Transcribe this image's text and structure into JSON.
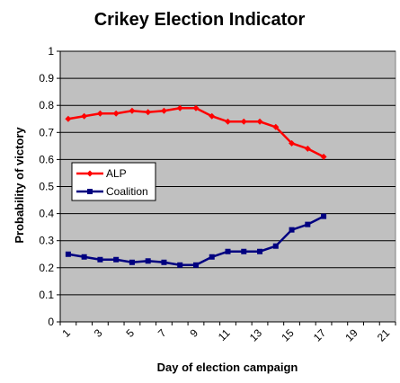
{
  "chart_data": {
    "type": "line",
    "title": "Crikey Election Indicator",
    "xlabel": "Day of election campaign",
    "ylabel": "Probability of victory",
    "xlim": [
      1,
      22
    ],
    "ylim": [
      0,
      1
    ],
    "x_ticks": [
      "1",
      "3",
      "5",
      "7",
      "9",
      "11",
      "13",
      "15",
      "17",
      "19",
      "21"
    ],
    "y_ticks": [
      "0",
      "0.1",
      "0.2",
      "0.3",
      "0.4",
      "0.5",
      "0.6",
      "0.7",
      "0.8",
      "0.9",
      "1"
    ],
    "grid": "horizontal",
    "legend_position": "middle-left",
    "x": [
      1,
      2,
      3,
      4,
      5,
      6,
      7,
      8,
      9,
      10,
      11,
      12,
      13,
      14,
      15,
      16,
      17
    ],
    "series": [
      {
        "name": "ALP",
        "color": "#ff0000",
        "marker": "diamond",
        "values": [
          0.75,
          0.76,
          0.77,
          0.77,
          0.78,
          0.775,
          0.78,
          0.79,
          0.79,
          0.76,
          0.74,
          0.74,
          0.74,
          0.72,
          0.66,
          0.64,
          0.61
        ]
      },
      {
        "name": "Coalition",
        "color": "#000080",
        "marker": "square",
        "values": [
          0.25,
          0.24,
          0.23,
          0.23,
          0.22,
          0.225,
          0.22,
          0.21,
          0.21,
          0.24,
          0.26,
          0.26,
          0.26,
          0.28,
          0.34,
          0.36,
          0.39
        ]
      }
    ],
    "plot_background": "#c0c0c0"
  }
}
